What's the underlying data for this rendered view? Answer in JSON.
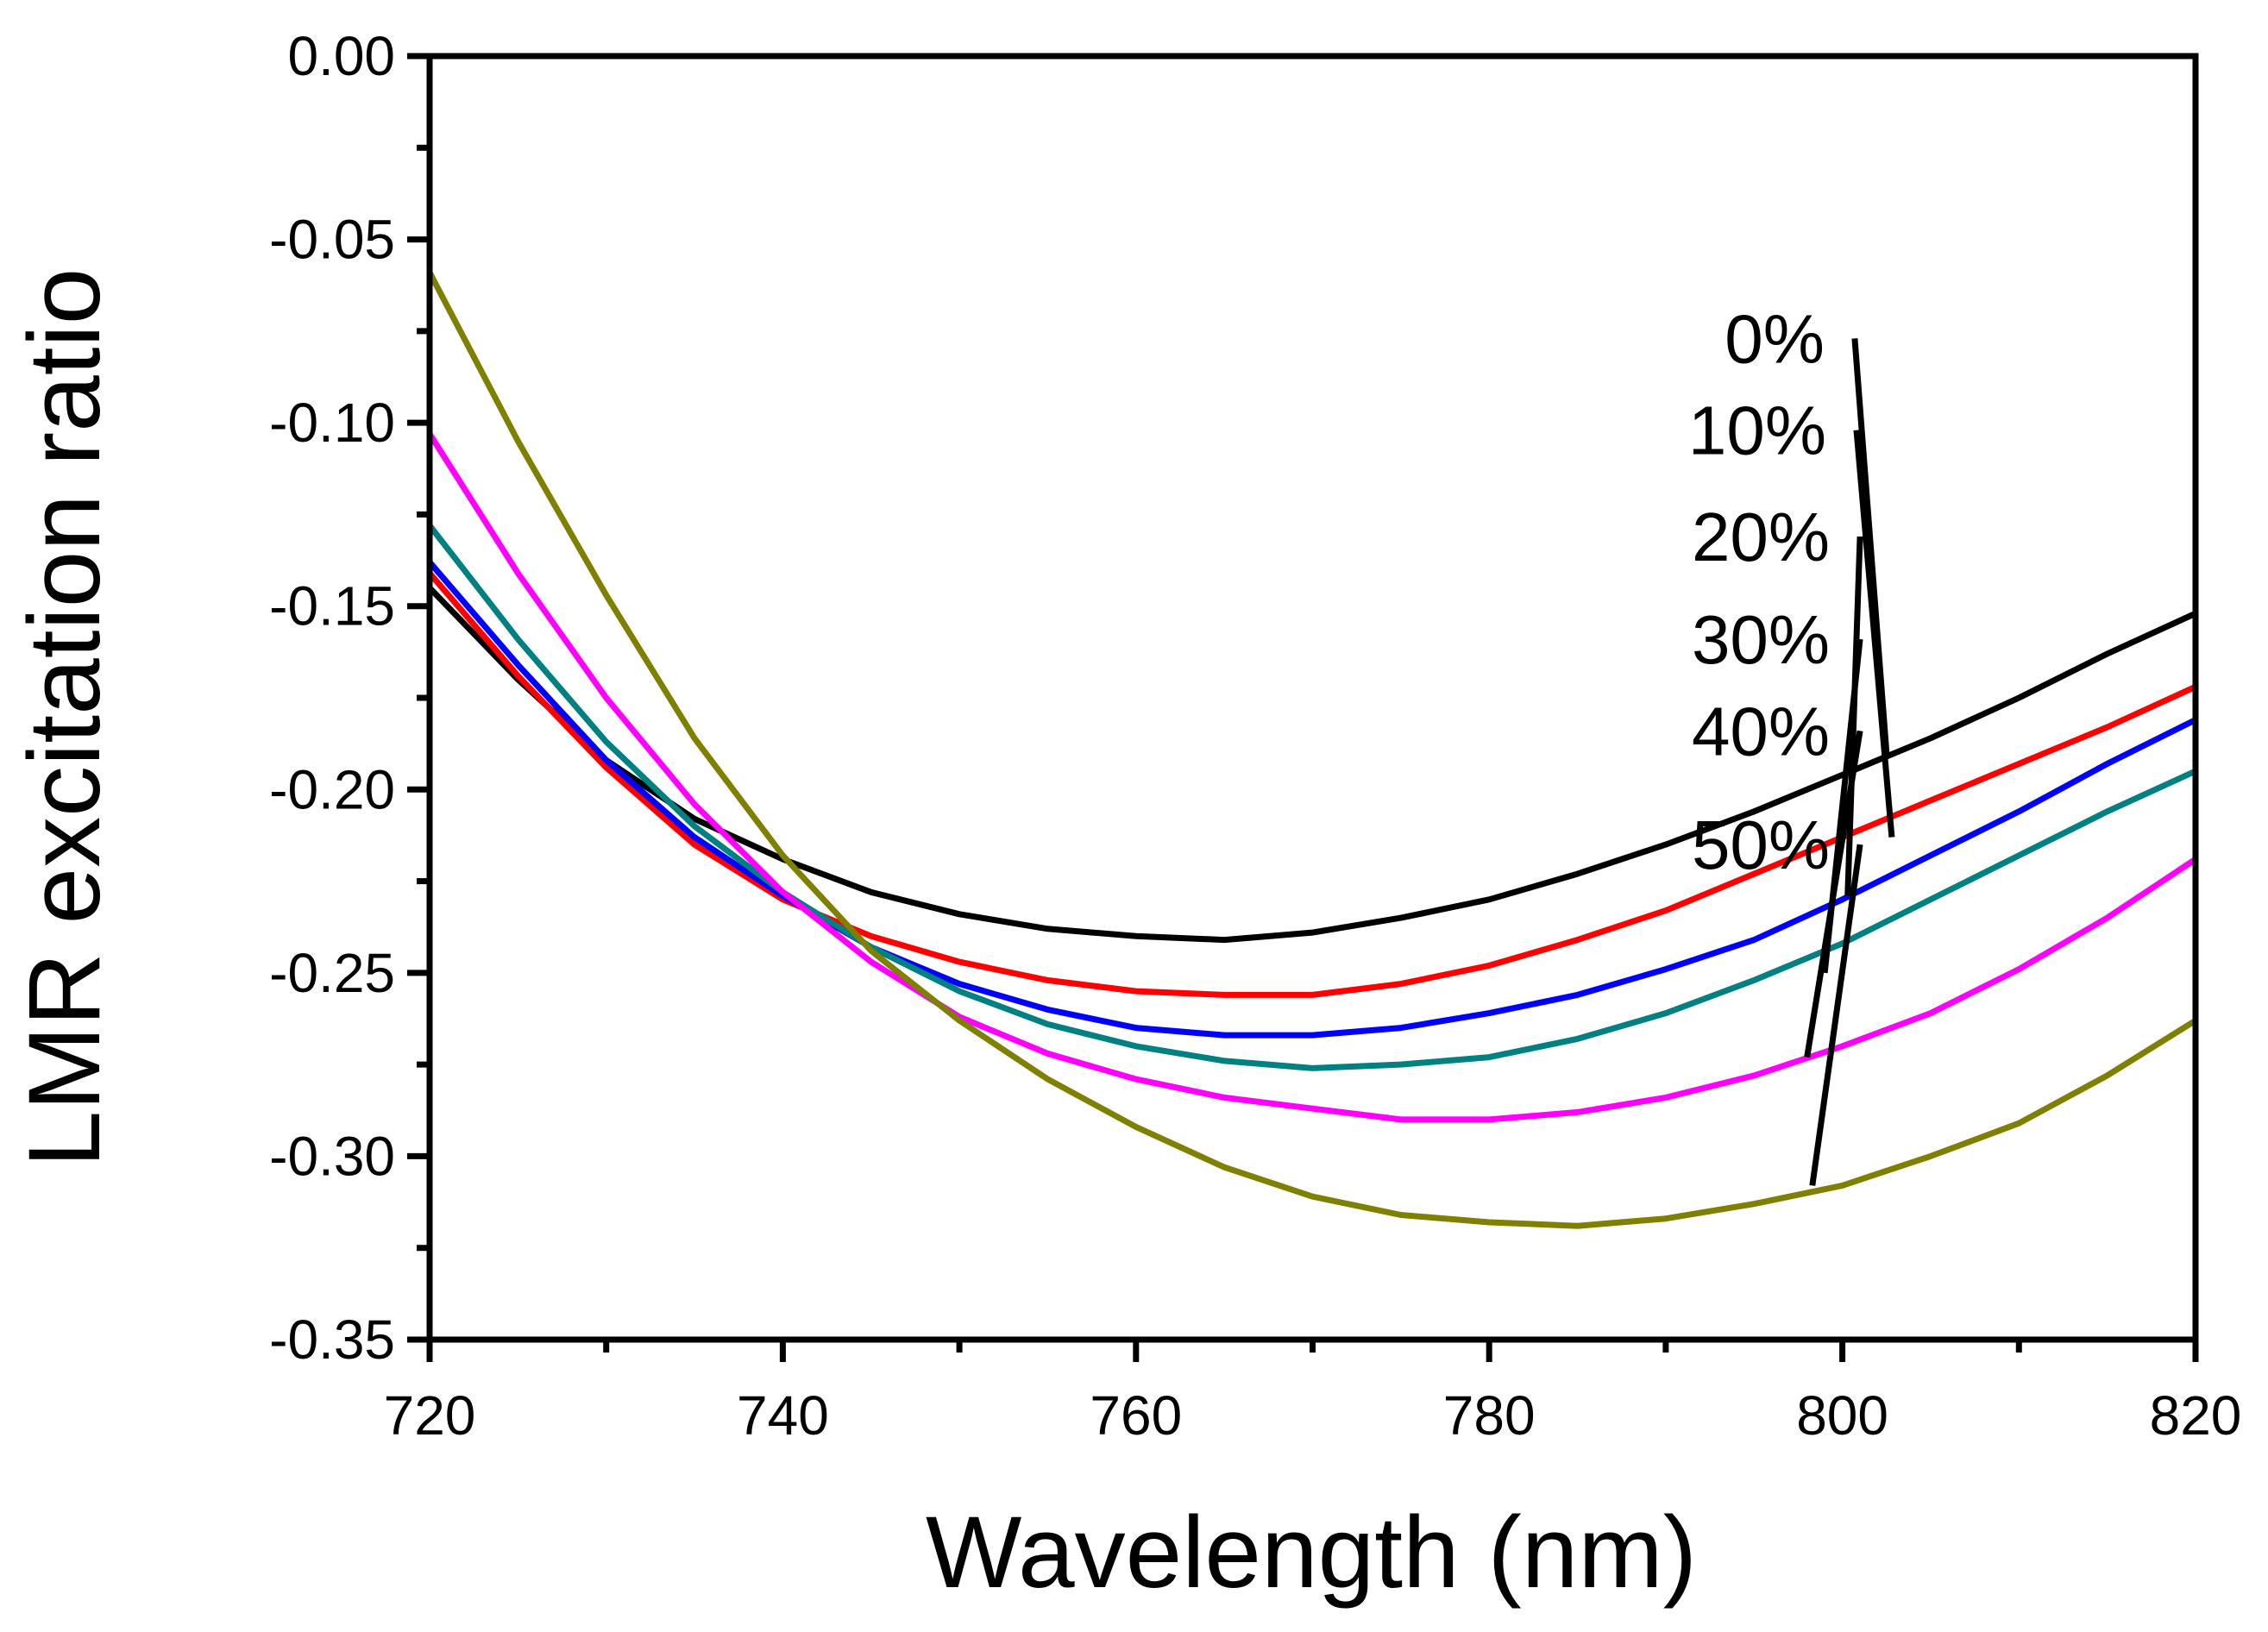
{
  "chart_data": {
    "type": "line",
    "title": "",
    "xlabel": "Wavelength (nm)",
    "ylabel": "LMR excitation ratio",
    "xlim": [
      720,
      820
    ],
    "ylim": [
      -0.35,
      0.0
    ],
    "x_ticks": [
      720,
      740,
      760,
      780,
      800,
      820
    ],
    "x_tick_labels": [
      "720",
      "740",
      "760",
      "780",
      "800",
      "820"
    ],
    "y_ticks": [
      0.0,
      -0.05,
      -0.1,
      -0.15,
      -0.2,
      -0.25,
      -0.3,
      -0.35
    ],
    "y_tick_labels": [
      "0.00",
      "-0.05",
      "-0.10",
      "-0.15",
      "-0.20",
      "-0.25",
      "-0.30",
      "-0.35"
    ],
    "grid": false,
    "legend": "annotations with leader lines, upper right",
    "x": [
      720,
      725,
      730,
      735,
      740,
      745,
      750,
      755,
      760,
      765,
      770,
      775,
      780,
      785,
      790,
      795,
      800,
      805,
      810,
      815,
      820
    ],
    "series": [
      {
        "name": "0%",
        "color": "#000000",
        "values": [
          -0.145,
          -0.17,
          -0.192,
          -0.208,
          -0.219,
          -0.228,
          -0.234,
          -0.238,
          -0.24,
          -0.241,
          -0.239,
          -0.235,
          -0.23,
          -0.223,
          -0.215,
          -0.206,
          -0.196,
          -0.186,
          -0.175,
          -0.163,
          -0.152
        ]
      },
      {
        "name": "10%",
        "color": "#ff0000",
        "values": [
          -0.141,
          -0.169,
          -0.194,
          -0.215,
          -0.23,
          -0.24,
          -0.247,
          -0.252,
          -0.255,
          -0.256,
          -0.256,
          -0.253,
          -0.248,
          -0.241,
          -0.233,
          -0.223,
          -0.213,
          -0.203,
          -0.193,
          -0.183,
          -0.172
        ]
      },
      {
        "name": "20%",
        "color": "#0000ff",
        "values": [
          -0.138,
          -0.166,
          -0.192,
          -0.213,
          -0.229,
          -0.243,
          -0.253,
          -0.26,
          -0.265,
          -0.267,
          -0.267,
          -0.265,
          -0.261,
          -0.256,
          -0.249,
          -0.241,
          -0.23,
          -0.218,
          -0.206,
          -0.193,
          -0.181
        ]
      },
      {
        "name": "30%",
        "color": "#008080",
        "values": [
          -0.128,
          -0.159,
          -0.187,
          -0.21,
          -0.228,
          -0.243,
          -0.255,
          -0.264,
          -0.27,
          -0.274,
          -0.276,
          -0.275,
          -0.273,
          -0.268,
          -0.261,
          -0.252,
          -0.242,
          -0.23,
          -0.218,
          -0.206,
          -0.195
        ]
      },
      {
        "name": "40%",
        "color": "#ff00ff",
        "values": [
          -0.103,
          -0.141,
          -0.175,
          -0.204,
          -0.228,
          -0.247,
          -0.262,
          -0.272,
          -0.279,
          -0.284,
          -0.287,
          -0.29,
          -0.29,
          -0.288,
          -0.284,
          -0.278,
          -0.27,
          -0.261,
          -0.249,
          -0.235,
          -0.219
        ]
      },
      {
        "name": "50%",
        "color": "#808000",
        "values": [
          -0.059,
          -0.105,
          -0.147,
          -0.186,
          -0.218,
          -0.244,
          -0.263,
          -0.279,
          -0.292,
          -0.303,
          -0.311,
          -0.316,
          -0.318,
          -0.319,
          -0.317,
          -0.313,
          -0.308,
          -0.3,
          -0.291,
          -0.278,
          -0.263
        ]
      }
    ],
    "annotations": [
      {
        "label": "0%",
        "from": [
          800.7,
          -0.077
        ],
        "to": [
          802.5,
          -0.19
        ]
      },
      {
        "label": "10%",
        "from": [
          800.8,
          -0.102
        ],
        "to": [
          802.8,
          -0.213
        ]
      },
      {
        "label": "20%",
        "from": [
          801.0,
          -0.131
        ],
        "to": [
          800.3,
          -0.229
        ]
      },
      {
        "label": "30%",
        "from": [
          801.0,
          -0.159
        ],
        "to": [
          799.0,
          -0.25
        ]
      },
      {
        "label": "40%",
        "from": [
          801.0,
          -0.184
        ],
        "to": [
          798.0,
          -0.273
        ]
      },
      {
        "label": "50%",
        "from": [
          801.0,
          -0.215
        ],
        "to": [
          798.3,
          -0.308
        ]
      }
    ]
  }
}
